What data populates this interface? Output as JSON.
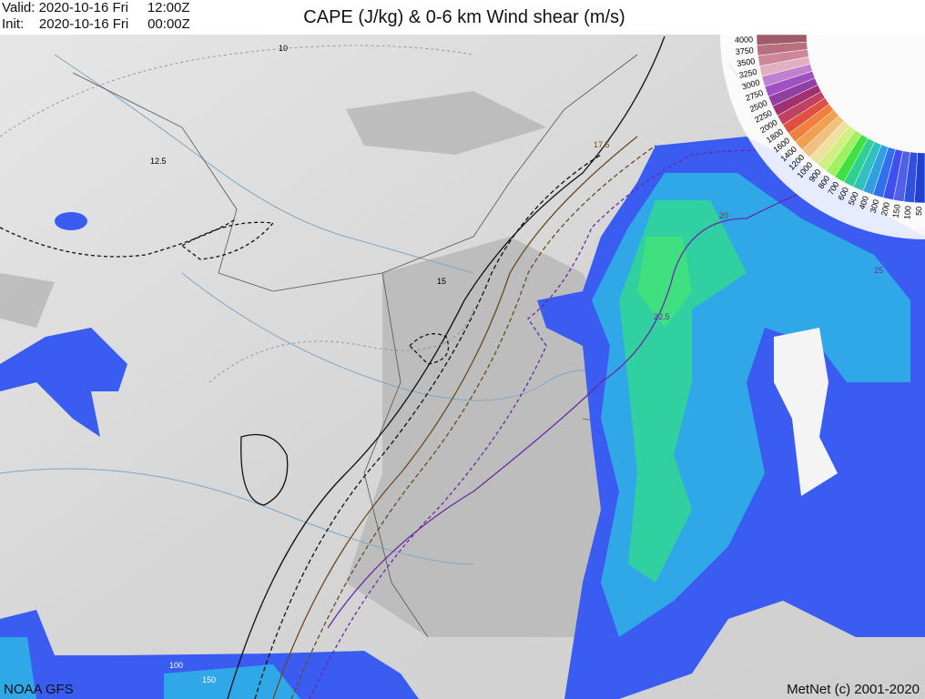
{
  "header": {
    "valid_label": "Valid:",
    "valid_date": "2020-10-16 Fri",
    "valid_time": "12:00Z",
    "init_label": "Init:",
    "init_date": "2020-10-16 Fri",
    "init_time": "00:00Z",
    "title": "CAPE (J/kg) & 0-6 km Wind shear (m/s)"
  },
  "legend": {
    "values": [
      "4000",
      "3750",
      "3500",
      "3250",
      "3000",
      "2750",
      "2500",
      "2250",
      "2000",
      "1800",
      "1600",
      "1400",
      "1200",
      "1000",
      "900",
      "800",
      "700",
      "600",
      "500",
      "400",
      "300",
      "200",
      "150",
      "100",
      "50"
    ],
    "colors": [
      "#a05a6a",
      "#b87080",
      "#cc8898",
      "#e0b0c0",
      "#c080d0",
      "#a050c0",
      "#9040a0",
      "#a03070",
      "#c04060",
      "#e05040",
      "#f08040",
      "#f0a050",
      "#f0c080",
      "#f0e0a0",
      "#d0f080",
      "#a0f060",
      "#40e040",
      "#30d090",
      "#30c0c0",
      "#30a0e0",
      "#3070f0",
      "#4050f0",
      "#5060e8",
      "#3050e0",
      "#2040d0"
    ]
  },
  "contours": {
    "shear_labels": [
      "10",
      "12.5",
      "15",
      "17.5",
      "20",
      "22.5",
      "25"
    ],
    "cape_labels": [
      "100",
      "150"
    ]
  },
  "colors": {
    "cape_low": "#3a5cf0",
    "cape_mid": "#30a8e8",
    "cape_high": "#30d0a0",
    "cape_peak": "#40e080",
    "terrain": "#d8d8d8"
  },
  "footer": {
    "source": "NOAA GFS",
    "credit": "MetNet (c) 2001-2020"
  }
}
